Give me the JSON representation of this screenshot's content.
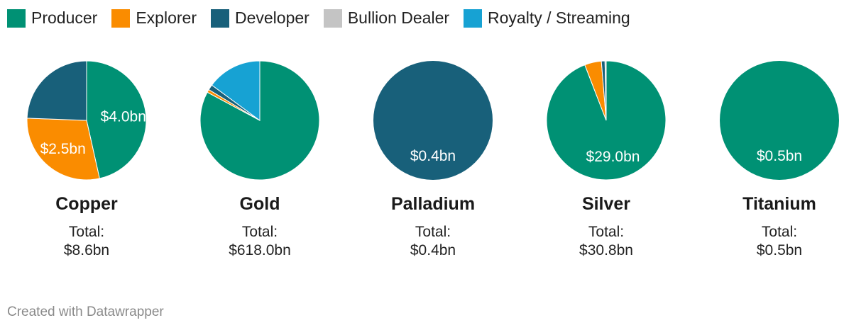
{
  "legend": [
    {
      "label": "Producer",
      "color": "#009174"
    },
    {
      "label": "Explorer",
      "color": "#fa8c00"
    },
    {
      "label": "Developer",
      "color": "#18607a"
    },
    {
      "label": "Bullion Dealer",
      "color": "#c4c4c4"
    },
    {
      "label": "Royalty / Streaming",
      "color": "#17a2d3"
    }
  ],
  "chart_data": [
    {
      "type": "pie",
      "title": "Copper",
      "total_label": "Total:",
      "total": "$8.6bn",
      "slices": [
        {
          "category": "Producer",
          "value": 4.0,
          "label": "$4.0bn"
        },
        {
          "category": "Explorer",
          "value": 2.5,
          "label": "$2.5bn"
        },
        {
          "category": "Developer",
          "value": 2.1,
          "label": ""
        }
      ]
    },
    {
      "type": "pie",
      "title": "Gold",
      "total_label": "Total:",
      "total": "$618.0bn",
      "slices": [
        {
          "category": "Producer",
          "value": 512.0,
          "label": ""
        },
        {
          "category": "Explorer",
          "value": 5.0,
          "label": ""
        },
        {
          "category": "Developer",
          "value": 9.0,
          "label": ""
        },
        {
          "category": "Royalty / Streaming",
          "value": 92.0,
          "label": ""
        }
      ]
    },
    {
      "type": "pie",
      "title": "Palladium",
      "total_label": "Total:",
      "total": "$0.4bn",
      "slices": [
        {
          "category": "Developer",
          "value": 0.4,
          "label": "$0.4bn"
        }
      ]
    },
    {
      "type": "pie",
      "title": "Silver",
      "total_label": "Total:",
      "total": "$30.8bn",
      "slices": [
        {
          "category": "Producer",
          "value": 29.0,
          "label": "$29.0bn"
        },
        {
          "category": "Explorer",
          "value": 1.4,
          "label": ""
        },
        {
          "category": "Developer",
          "value": 0.3,
          "label": ""
        },
        {
          "category": "Bullion Dealer",
          "value": 0.1,
          "label": ""
        }
      ]
    },
    {
      "type": "pie",
      "title": "Titanium",
      "total_label": "Total:",
      "total": "$0.5bn",
      "slices": [
        {
          "category": "Producer",
          "value": 0.5,
          "label": "$0.5bn"
        }
      ]
    }
  ],
  "credit": "Created with Datawrapper"
}
